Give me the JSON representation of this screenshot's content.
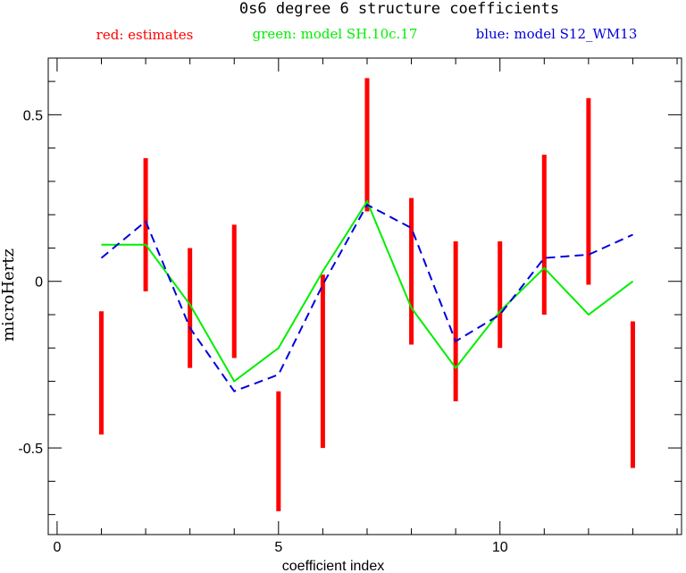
{
  "chart_data": {
    "type": "line",
    "title": "0s6 degree 6 structure coefficients",
    "xlabel": "coefficient index",
    "ylabel": "microHertz",
    "xlim": [
      -0.2,
      14.1
    ],
    "ylim": [
      -0.76,
      0.67
    ],
    "x_ticks": [
      0,
      5,
      10
    ],
    "y_ticks": [
      0.5,
      0,
      -0.5
    ],
    "y_tick_labels": [
      "0.5",
      "0",
      "-0.5"
    ],
    "x_minor_ticks": [
      1,
      2,
      3,
      4,
      6,
      7,
      8,
      9,
      11,
      12,
      13,
      14
    ],
    "y_minor_ticks": [
      0.6,
      0.4,
      0.3,
      0.2,
      0.1,
      -0.1,
      -0.2,
      -0.3,
      -0.4,
      -0.6,
      -0.7
    ],
    "legend": [
      {
        "text": "red: estimates",
        "color": "#ff0000"
      },
      {
        "text": "green: model SH.10c.17",
        "color": "#00ee00"
      },
      {
        "text": "blue: model S12_WM13",
        "color": "#0000dd"
      }
    ],
    "estimates": {
      "name": "estimates",
      "color": "#ff0000",
      "x": [
        1,
        2,
        3,
        4,
        5,
        6,
        7,
        8,
        9,
        10,
        11,
        12,
        13
      ],
      "low": [
        -0.46,
        -0.03,
        -0.26,
        -0.23,
        -0.69,
        -0.5,
        0.21,
        -0.19,
        -0.36,
        -0.2,
        -0.1,
        -0.01,
        -0.56
      ],
      "high": [
        -0.09,
        0.37,
        0.1,
        0.17,
        -0.33,
        0.02,
        0.61,
        0.25,
        0.12,
        0.12,
        0.38,
        0.55,
        -0.12
      ]
    },
    "series": [
      {
        "name": "model SH.10c.17",
        "color": "#00ee00",
        "style": "solid",
        "x": [
          1,
          2,
          3,
          4,
          5,
          6,
          7,
          8,
          9,
          10,
          11,
          12,
          13
        ],
        "y": [
          0.11,
          0.11,
          -0.07,
          -0.3,
          -0.2,
          0.03,
          0.24,
          -0.08,
          -0.26,
          -0.09,
          0.04,
          -0.1,
          0.0
        ]
      },
      {
        "name": "model S12_WM13",
        "color": "#0000dd",
        "style": "dashed",
        "x": [
          1,
          2,
          3,
          4,
          5,
          6,
          7,
          8,
          9,
          10,
          11,
          12,
          13
        ],
        "y": [
          0.07,
          0.18,
          -0.14,
          -0.33,
          -0.28,
          -0.01,
          0.23,
          0.16,
          -0.18,
          -0.1,
          0.07,
          0.08,
          0.14
        ]
      }
    ],
    "grid": false
  }
}
